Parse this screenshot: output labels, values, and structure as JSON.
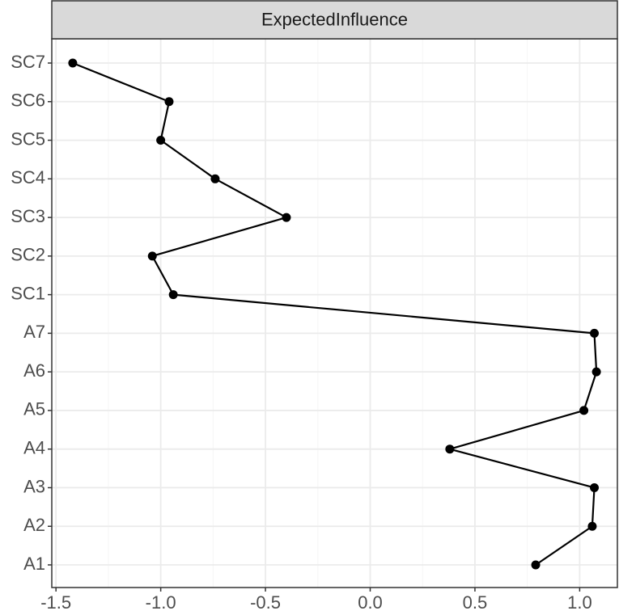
{
  "chart_data": {
    "type": "line",
    "facet_title": "ExpectedInfluence",
    "categories": [
      "A1",
      "A2",
      "A3",
      "A4",
      "A5",
      "A6",
      "A7",
      "SC1",
      "SC2",
      "SC3",
      "SC4",
      "SC5",
      "SC6",
      "SC7"
    ],
    "x_values": [
      0.79,
      1.06,
      1.07,
      0.38,
      1.02,
      1.08,
      1.07,
      -0.94,
      -1.04,
      -0.4,
      -0.74,
      -1.0,
      -0.96,
      -1.42
    ],
    "xlim": [
      -1.52,
      1.18
    ],
    "x_ticks": [
      -1.5,
      -1.0,
      -0.5,
      0.0,
      0.5,
      1.0
    ],
    "x_tick_labels": [
      "-1.5",
      "-1.0",
      "-0.5",
      "0.0",
      "0.5",
      "1.0"
    ],
    "grid": true,
    "colors": {
      "line": "#000000",
      "point": "#000000",
      "grid_major": "#ebebeb",
      "grid_minor": "#f5f5f5",
      "strip_fill": "#d9d9d9",
      "border": "#333333",
      "tick_label": "#4d4d4d"
    }
  }
}
